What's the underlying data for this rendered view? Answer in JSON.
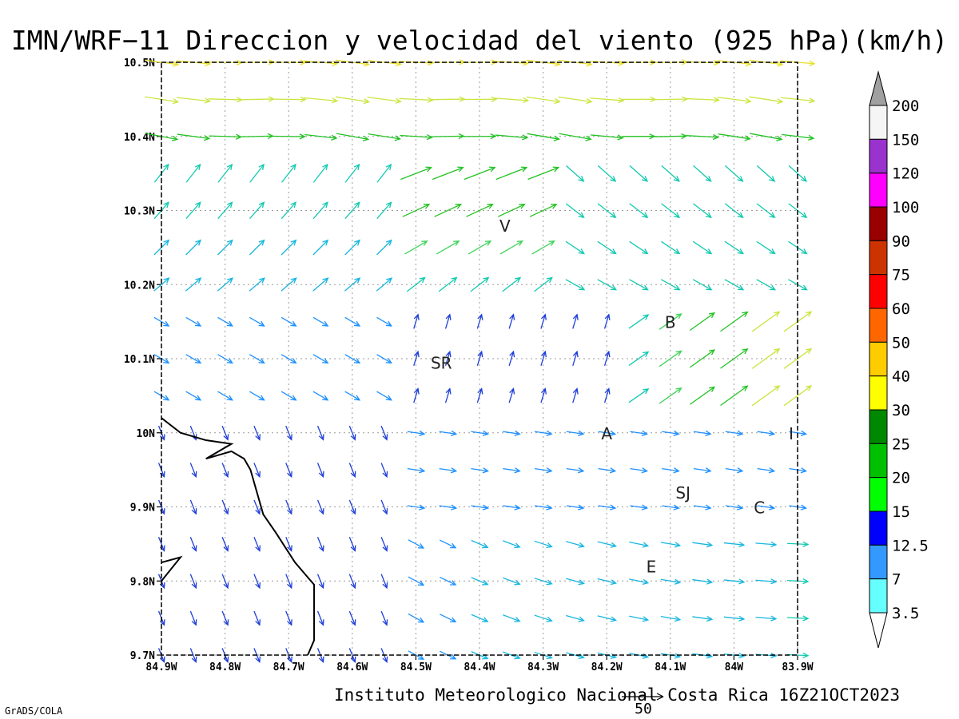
{
  "title": "IMN/WRF−11 Direccion y velocidad del viento (925 hPa)(km/h)",
  "footer": "Instituto Meteorologico Nacional Costa Rica 16Z21OCT2023",
  "software": "GrADS/COLA",
  "reference_vector": {
    "label": "50",
    "speed_kmh": 50
  },
  "map": {
    "lon_range": [
      -84.9,
      -83.9
    ],
    "lat_range": [
      9.7,
      10.5
    ],
    "grid_lines": "dotted",
    "x_ticks": [
      {
        "value": -84.9,
        "label": "84.9W"
      },
      {
        "value": -84.8,
        "label": "84.8W"
      },
      {
        "value": -84.7,
        "label": "84.7W"
      },
      {
        "value": -84.6,
        "label": "84.6W"
      },
      {
        "value": -84.5,
        "label": "84.5W"
      },
      {
        "value": -84.4,
        "label": "84.4W"
      },
      {
        "value": -84.3,
        "label": "84.3W"
      },
      {
        "value": -84.2,
        "label": "84.2W"
      },
      {
        "value": -84.1,
        "label": "84.1W"
      },
      {
        "value": -84.0,
        "label": "84W"
      },
      {
        "value": -83.9,
        "label": "83.9W"
      }
    ],
    "y_ticks": [
      {
        "value": 9.7,
        "label": "9.7N"
      },
      {
        "value": 9.8,
        "label": "9.8N"
      },
      {
        "value": 9.9,
        "label": "9.9N"
      },
      {
        "value": 10.0,
        "label": "10N"
      },
      {
        "value": 10.1,
        "label": "10.1N"
      },
      {
        "value": 10.2,
        "label": "10.2N"
      },
      {
        "value": 10.3,
        "label": "10.3N"
      },
      {
        "value": 10.4,
        "label": "10.4N"
      },
      {
        "value": 10.5,
        "label": "10.5N"
      }
    ],
    "stations": [
      {
        "label": "V",
        "lon": -84.36,
        "lat": 10.28
      },
      {
        "label": "B",
        "lon": -84.1,
        "lat": 10.15
      },
      {
        "label": "SR",
        "lon": -84.46,
        "lat": 10.095
      },
      {
        "label": "A",
        "lon": -84.2,
        "lat": 10.0
      },
      {
        "label": "I",
        "lon": -83.91,
        "lat": 10.0
      },
      {
        "label": "SJ",
        "lon": -84.08,
        "lat": 9.92
      },
      {
        "label": "C",
        "lon": -83.96,
        "lat": 9.9
      },
      {
        "label": "E",
        "lon": -84.13,
        "lat": 9.82
      }
    ],
    "coastline": [
      [
        -84.9,
        10.02
      ],
      [
        -84.87,
        10.0
      ],
      [
        -84.83,
        9.99
      ],
      [
        -84.79,
        9.985
      ],
      [
        -84.83,
        9.965
      ],
      [
        -84.79,
        9.975
      ],
      [
        -84.77,
        9.965
      ],
      [
        -84.76,
        9.95
      ],
      [
        -84.74,
        9.89
      ],
      [
        -84.72,
        9.865
      ],
      [
        -84.69,
        9.825
      ],
      [
        -84.66,
        9.795
      ],
      [
        -84.66,
        9.75
      ],
      [
        -84.66,
        9.72
      ],
      [
        -84.67,
        9.7
      ]
    ],
    "coastline_small": [
      [
        -84.9,
        9.825
      ],
      [
        -84.87,
        9.832
      ],
      [
        -84.9,
        9.8
      ]
    ],
    "wind_field": {
      "nx": 21,
      "ny": 17,
      "lon_step": 0.05,
      "lat_step": 0.05,
      "note_units": "km/h"
    }
  },
  "colorbar": {
    "levels": [
      {
        "label": "200",
        "color": "#a0a0a0"
      },
      {
        "label": "150",
        "color": "#f5f5f5"
      },
      {
        "label": "120",
        "color": "#9a32cd"
      },
      {
        "label": "100",
        "color": "#ff00ff"
      },
      {
        "label": "90",
        "color": "#990000"
      },
      {
        "label": "75",
        "color": "#cc3300"
      },
      {
        "label": "60",
        "color": "#ff0000"
      },
      {
        "label": "50",
        "color": "#ff6600"
      },
      {
        "label": "40",
        "color": "#ffcc00"
      },
      {
        "label": "30",
        "color": "#ffff00"
      },
      {
        "label": "25",
        "color": "#008800"
      },
      {
        "label": "20",
        "color": "#00c000"
      },
      {
        "label": "15",
        "color": "#00ff00"
      },
      {
        "label": "12.5",
        "color": "#0000ff"
      },
      {
        "label": "7",
        "color": "#3399ff"
      },
      {
        "label": "3.5",
        "color": "#66ffff"
      }
    ]
  },
  "speed_palette": [
    {
      "max": 3.5,
      "color": "#9b00d0"
    },
    {
      "max": 7,
      "color": "#9b00d0"
    },
    {
      "max": 12.5,
      "color": "#1f3fd8"
    },
    {
      "max": 15,
      "color": "#1e90ff"
    },
    {
      "max": 20,
      "color": "#17b6e0"
    },
    {
      "max": 25,
      "color": "#12c9b0"
    },
    {
      "max": 30,
      "color": "#3fd35a"
    },
    {
      "max": 40,
      "color": "#22c322"
    },
    {
      "max": 50,
      "color": "#c9e640"
    },
    {
      "max": 60,
      "color": "#e8e02a"
    },
    {
      "max": 75,
      "color": "#f3b030"
    },
    {
      "max": 999,
      "color": "#ef3b3b"
    }
  ]
}
